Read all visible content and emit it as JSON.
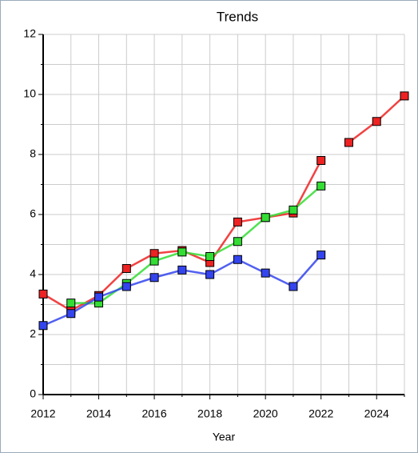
{
  "chart_data": {
    "type": "line",
    "title": "Trends",
    "x_label": "Year",
    "xlim": [
      2012,
      2025
    ],
    "xticks": [
      2012,
      2014,
      2016,
      2018,
      2020,
      2022,
      2024
    ],
    "minor_xticks": [
      2013,
      2015,
      2017,
      2019,
      2021,
      2023,
      2025
    ],
    "ylim": [
      0,
      12
    ],
    "yticks": [
      0,
      2,
      4,
      6,
      8,
      10,
      12
    ],
    "minor_yticks": [
      1,
      3,
      5,
      7,
      9,
      11
    ],
    "grid": true,
    "series": [
      {
        "color": "#ee2222",
        "x": [
          2012,
          2013,
          2014,
          2015,
          2016,
          2017,
          2018,
          2019,
          2020,
          2021,
          2022
        ],
        "values": [
          3.35,
          2.8,
          3.3,
          4.2,
          4.7,
          4.8,
          4.4,
          5.75,
          5.9,
          6.05,
          7.8
        ]
      },
      {
        "color": "#ee2222",
        "x": [
          2023,
          2024,
          2025
        ],
        "values": [
          8.4,
          9.1,
          9.95
        ]
      },
      {
        "color": "#33dd33",
        "x": [
          2013,
          2014,
          2015,
          2016,
          2017,
          2018,
          2019,
          2020,
          2021,
          2022
        ],
        "values": [
          3.05,
          3.05,
          3.7,
          4.45,
          4.75,
          4.6,
          5.1,
          5.9,
          6.15,
          6.95
        ]
      },
      {
        "color": "#3344ee",
        "x": [
          2012,
          2013,
          2014,
          2015,
          2016,
          2017,
          2018,
          2019,
          2020,
          2021,
          2022
        ],
        "values": [
          2.3,
          2.7,
          3.25,
          3.6,
          3.9,
          4.15,
          4.0,
          4.5,
          4.05,
          3.6,
          4.65
        ]
      }
    ]
  }
}
